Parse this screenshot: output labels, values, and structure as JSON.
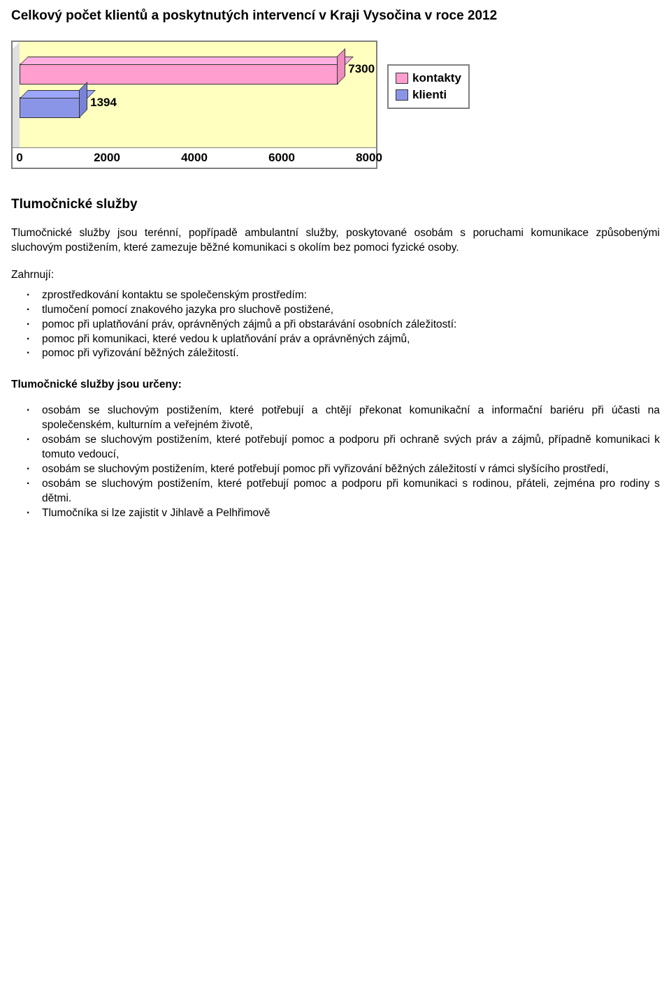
{
  "title": "Celkový počet klientů a poskytnutých intervencí v Kraji Vysočina v roce 2012",
  "chart": {
    "type": "bar",
    "orientation": "horizontal",
    "xmin": 0,
    "xmax": 8000,
    "xticks": [
      0,
      2000,
      4000,
      6000,
      8000
    ],
    "bars": [
      {
        "label": "kontakty",
        "value": 7300,
        "color": "#ff9ecf",
        "y_pct": 30
      },
      {
        "label": "klienti",
        "value": 1394,
        "color": "#8b95e8",
        "y_pct": 62
      }
    ],
    "plot_background": "#ffffc0",
    "legend": [
      {
        "label": "kontakty",
        "color": "#ff9ecf"
      },
      {
        "label": "klienti",
        "color": "#8b95e8"
      }
    ]
  },
  "section_heading": "Tlumočnické služby",
  "intro": "Tlumočnické služby jsou terénní, popřípadě ambulantní služby, poskytované osobám s poruchami komunikace způsobenými sluchovým postižením, které zamezuje běžné komunikaci s okolím bez pomoci fyzické osoby.",
  "zahrnuji_label": "Zahrnují:",
  "zahrnuji": [
    "zprostředkování kontaktu se společenským prostředím:",
    "tlumočení pomocí znakového jazyka pro sluchově postižené,",
    "pomoc při uplatňování práv, oprávněných zájmů a při obstarávání osobních záležitostí:",
    "pomoc při komunikaci, které vedou k uplatňování práv a oprávněných zájmů,",
    "pomoc při vyřizování běžných záležitostí."
  ],
  "urceny_heading": "Tlumočnické služby jsou určeny:",
  "urceny": [
    "osobám se sluchovým postižením, které potřebují a chtějí překonat komunikační a informační bariéru při účasti na společenském, kulturním a veřejném životě,",
    "osobám se sluchovým postižením, které potřebují pomoc a podporu při ochraně svých práv a zájmů, případně komunikaci k tomuto vedoucí,",
    "osobám se sluchovým postižením, které potřebují pomoc při vyřizování běžných záležitostí v rámci slyšícího prostředí,",
    "osobám se sluchovým postižením, které potřebují pomoc a podporu při komunikaci s rodinou, přáteli, zejména pro rodiny s dětmi.",
    "Tlumočníka si lze zajistit v Jihlavě a Pelhřimově"
  ]
}
